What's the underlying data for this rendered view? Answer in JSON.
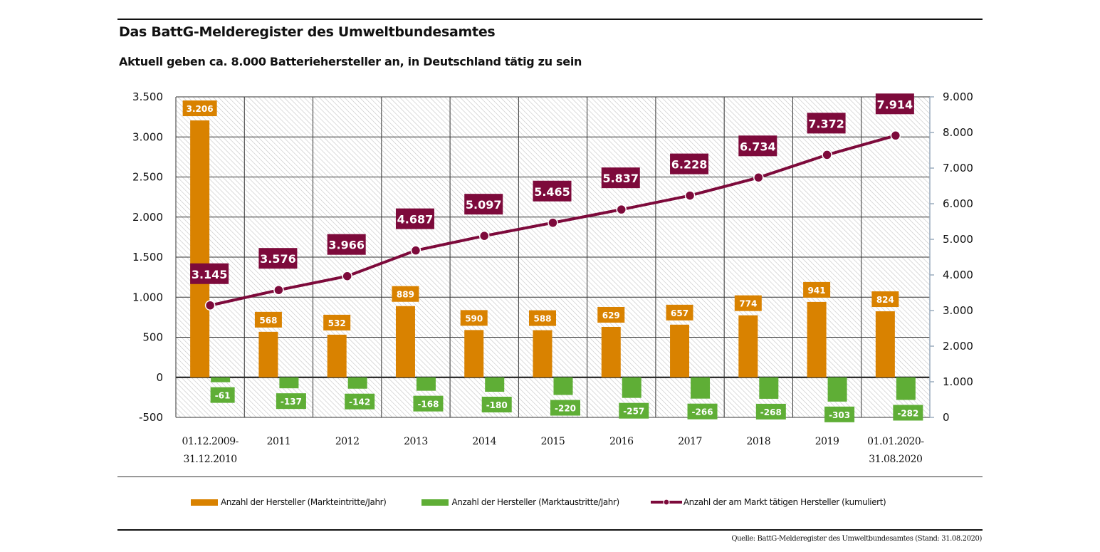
{
  "header": {
    "title": "Das BattG-Melderegister des Umweltbundesamtes",
    "subtitle": "Aktuell geben ca. 8.000 Batteriehersteller an, in Deutschland tätig zu sein"
  },
  "source": "Quelle: BattG-Melderegister des Umweltbundesamtes (Stand: 31.08.2020)",
  "colors": {
    "entries": "#d98200",
    "exits": "#5fae36",
    "cumulative": "#7d0a3b",
    "grid": "#222222",
    "right_axis": "#9aacbe"
  },
  "chart_data": {
    "type": "bar",
    "title": "Das BattG-Melderegister des Umweltbundesamtes",
    "subtitle": "Aktuell geben ca. 8.000 Batteriehersteller an, in Deutschland tätig zu sein",
    "xlabel": "",
    "ylabel": "",
    "categories": [
      [
        "01.12.2009-",
        "31.12.2010"
      ],
      [
        "2011"
      ],
      [
        "2012"
      ],
      [
        "2013"
      ],
      [
        "2014"
      ],
      [
        "2015"
      ],
      [
        "2016"
      ],
      [
        "2017"
      ],
      [
        "2018"
      ],
      [
        "2019"
      ],
      [
        "01.01.2020-",
        "31.08.2020"
      ]
    ],
    "ylim_left": [
      -500,
      3500
    ],
    "yticks_left": [
      3500,
      3000,
      2500,
      2000,
      1500,
      1000,
      500,
      0,
      -500
    ],
    "yticklabels_left": [
      "3.500",
      "3.000",
      "2.500",
      "2.000",
      "1.500",
      "1.000",
      "500",
      "0",
      "-500"
    ],
    "ylim_right": [
      0,
      9000
    ],
    "yticks_right": [
      9000,
      8000,
      7000,
      6000,
      5000,
      4000,
      3000,
      2000,
      1000,
      0
    ],
    "yticklabels_right": [
      "9.000",
      "8.000",
      "7.000",
      "6.000",
      "5.000",
      "4.000",
      "3.000",
      "2.000",
      "1.000",
      "0"
    ],
    "grid": true,
    "legend_position": "bottom",
    "series": [
      {
        "name": "Anzahl der Hersteller (Markteintritte/Jahr)",
        "type": "bar",
        "axis": "left",
        "values": [
          3206,
          568,
          532,
          889,
          590,
          588,
          629,
          657,
          774,
          941,
          824
        ],
        "labels": [
          "3.206",
          "568",
          "532",
          "889",
          "590",
          "588",
          "629",
          "657",
          "774",
          "941",
          "824"
        ]
      },
      {
        "name": "Anzahl der Hersteller (Marktaustritte/Jahr)",
        "type": "bar",
        "axis": "left",
        "values": [
          -61,
          -137,
          -142,
          -168,
          -180,
          -220,
          -257,
          -266,
          -268,
          -303,
          -282
        ],
        "labels": [
          "-61",
          "-137",
          "-142",
          "-168",
          "-180",
          "-220",
          "-257",
          "-266",
          "-268",
          "-303",
          "-282"
        ]
      },
      {
        "name": "Anzahl der am Markt tätigen Hersteller (kumuliert)",
        "type": "line",
        "axis": "right",
        "values": [
          3145,
          3576,
          3966,
          4687,
          5097,
          5465,
          5837,
          6228,
          6734,
          7372,
          7914
        ],
        "labels": [
          "3.145",
          "3.576",
          "3.966",
          "4.687",
          "5.097",
          "5.465",
          "5.837",
          "6.228",
          "6.734",
          "7.372",
          "7.914"
        ]
      }
    ]
  },
  "legend": [
    {
      "label": "Anzahl der Hersteller (Markteintritte/Jahr)",
      "icon": "orange-bar-swatch"
    },
    {
      "label": "Anzahl der Hersteller (Marktaustritte/Jahr)",
      "icon": "green-bar-swatch"
    },
    {
      "label": "Anzahl der am Markt tätigen Hersteller (kumuliert)",
      "icon": "line-marker-swatch"
    }
  ]
}
